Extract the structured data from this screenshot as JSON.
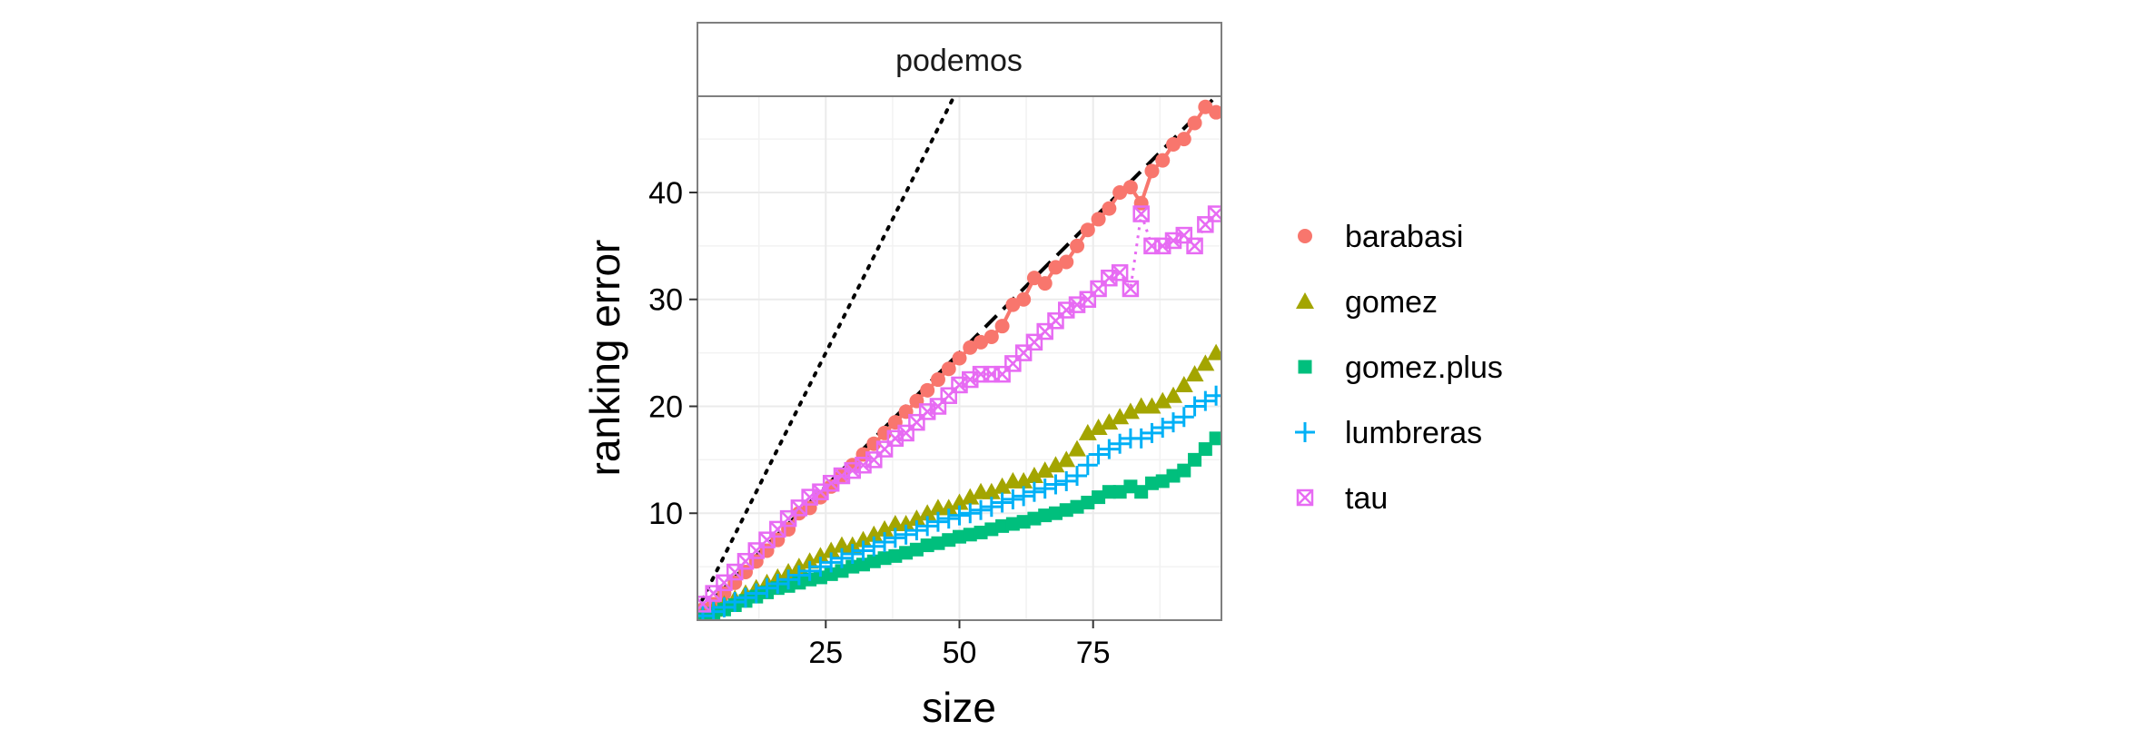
{
  "chart_data": {
    "type": "scatter",
    "facet": "podemos",
    "xlabel": "size",
    "ylabel": "ranking error",
    "xlim": [
      1,
      99
    ],
    "ylim": [
      0,
      49
    ],
    "x_ticks": [
      25,
      50,
      75
    ],
    "y_ticks": [
      10,
      20,
      30,
      40
    ],
    "grid": true,
    "legend_position": "right",
    "reference_lines": [
      {
        "style": "dotted",
        "slope": 1.0,
        "intercept": 0
      },
      {
        "style": "dashed",
        "slope": 0.5,
        "intercept": 0
      }
    ],
    "series": [
      {
        "name": "barabasi",
        "color": "#F8766D",
        "shape": "circle",
        "line": "solid",
        "x": [
          2,
          4,
          6,
          8,
          10,
          12,
          14,
          16,
          18,
          20,
          22,
          24,
          26,
          28,
          30,
          32,
          34,
          36,
          38,
          40,
          42,
          44,
          46,
          48,
          50,
          52,
          54,
          56,
          58,
          60,
          62,
          64,
          66,
          68,
          70,
          72,
          74,
          76,
          78,
          80,
          82,
          84,
          86,
          88,
          90,
          92,
          94,
          96,
          98
        ],
        "y": [
          1,
          1.5,
          2.5,
          3.5,
          4.5,
          5.5,
          6.5,
          7.5,
          8.5,
          10,
          10.5,
          11.5,
          12.5,
          13.5,
          14.5,
          15.5,
          16.5,
          17.5,
          18.5,
          19.5,
          20.5,
          21.5,
          22.5,
          23.5,
          24.5,
          25.5,
          26,
          26.5,
          27.5,
          29.5,
          30,
          32,
          31.5,
          33,
          33.5,
          35,
          36.5,
          37.5,
          38.5,
          40,
          40.5,
          39,
          42,
          43,
          44.5,
          45,
          46.5,
          48,
          47.5
        ]
      },
      {
        "name": "gomez",
        "color": "#A3A500",
        "shape": "triangle",
        "line": "none",
        "x": [
          2,
          4,
          6,
          8,
          10,
          12,
          14,
          16,
          18,
          20,
          22,
          24,
          26,
          28,
          30,
          32,
          34,
          36,
          38,
          40,
          42,
          44,
          46,
          48,
          50,
          52,
          54,
          56,
          58,
          60,
          62,
          64,
          66,
          68,
          70,
          72,
          74,
          76,
          78,
          80,
          82,
          84,
          86,
          88,
          90,
          92,
          94,
          96,
          98
        ],
        "y": [
          0.5,
          1,
          1.5,
          2,
          2.5,
          3,
          3.5,
          4,
          4.5,
          5,
          5.5,
          6,
          6.5,
          7,
          7,
          7.5,
          8,
          8.5,
          9,
          9,
          9.5,
          10,
          10.5,
          10.5,
          11,
          11.5,
          12,
          12,
          12.5,
          13,
          13,
          13.5,
          14,
          14.5,
          15,
          16,
          17.5,
          18,
          18.5,
          19,
          19.5,
          20,
          20,
          20.5,
          21,
          22,
          23,
          24,
          25
        ]
      },
      {
        "name": "gomez.plus",
        "color": "#00BF7D",
        "shape": "square",
        "line": "none",
        "x": [
          2,
          4,
          6,
          8,
          10,
          12,
          14,
          16,
          18,
          20,
          22,
          24,
          26,
          28,
          30,
          32,
          34,
          36,
          38,
          40,
          42,
          44,
          46,
          48,
          50,
          52,
          54,
          56,
          58,
          60,
          62,
          64,
          66,
          68,
          70,
          72,
          74,
          76,
          78,
          80,
          82,
          84,
          86,
          88,
          90,
          92,
          94,
          96,
          98
        ],
        "y": [
          0.3,
          0.6,
          1,
          1.4,
          1.8,
          2.2,
          2.6,
          3,
          3.2,
          3.5,
          3.8,
          4,
          4.3,
          4.6,
          5,
          5.2,
          5.5,
          5.8,
          6,
          6.3,
          6.6,
          7,
          7.2,
          7.5,
          7.8,
          8,
          8.2,
          8.5,
          8.8,
          9,
          9.2,
          9.5,
          9.8,
          10,
          10.3,
          10.6,
          11,
          11.5,
          12,
          12,
          12.5,
          12,
          12.8,
          13,
          13.5,
          14,
          15,
          16,
          17
        ]
      },
      {
        "name": "lumbreras",
        "color": "#00B0F6",
        "shape": "plus",
        "line": "none",
        "x": [
          2,
          4,
          6,
          8,
          10,
          12,
          14,
          16,
          18,
          20,
          22,
          24,
          26,
          28,
          30,
          32,
          34,
          36,
          38,
          40,
          42,
          44,
          46,
          48,
          50,
          52,
          54,
          56,
          58,
          60,
          62,
          64,
          66,
          68,
          70,
          72,
          74,
          76,
          78,
          80,
          82,
          84,
          86,
          88,
          90,
          92,
          94,
          96,
          98
        ],
        "y": [
          0.4,
          0.8,
          1.2,
          1.7,
          2.1,
          2.5,
          3,
          3.4,
          3.8,
          4.2,
          4.6,
          5,
          5.4,
          5.8,
          6.2,
          6.5,
          6.9,
          7.3,
          7.7,
          8,
          8.4,
          8.8,
          9.2,
          9.5,
          9.8,
          10,
          10.3,
          10.6,
          11,
          11.3,
          11.6,
          12,
          12.3,
          12.7,
          13,
          13.5,
          14.5,
          15.5,
          16,
          16.5,
          17,
          17,
          17.5,
          18,
          18.5,
          19,
          20,
          20.5,
          21
        ]
      },
      {
        "name": "tau",
        "color": "#E76BF3",
        "shape": "square-cross",
        "line": "dotted",
        "x": [
          2,
          4,
          6,
          8,
          10,
          12,
          14,
          16,
          18,
          20,
          22,
          24,
          26,
          28,
          30,
          32,
          34,
          36,
          38,
          40,
          42,
          44,
          46,
          48,
          50,
          52,
          54,
          56,
          58,
          60,
          62,
          64,
          66,
          68,
          70,
          72,
          74,
          76,
          78,
          80,
          82,
          84,
          86,
          88,
          90,
          92,
          94,
          96,
          98
        ],
        "y": [
          1.5,
          2.5,
          3.5,
          4.5,
          5.5,
          6.5,
          7.5,
          8.5,
          9.5,
          10.5,
          11.5,
          12,
          12.8,
          13.5,
          14,
          14.5,
          15,
          16,
          17,
          17.5,
          18.5,
          19.5,
          20,
          21,
          22,
          22.5,
          23,
          23,
          23,
          24,
          25,
          26,
          27,
          28,
          29,
          29.5,
          30,
          31,
          32,
          32.5,
          31,
          38,
          35,
          35,
          35.5,
          36,
          35,
          37,
          38
        ]
      }
    ]
  }
}
